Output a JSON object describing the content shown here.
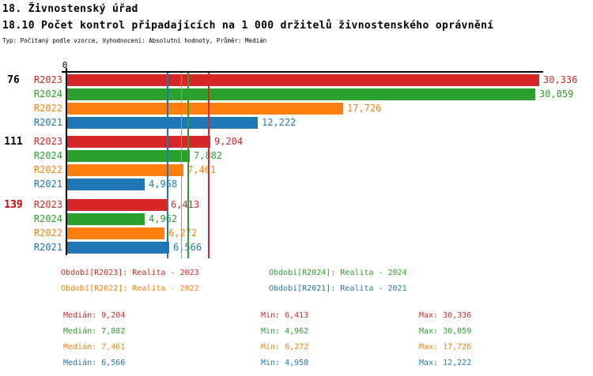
{
  "header": {
    "line1": "18. Živnostenský úřad",
    "line2": "18.10 Počet kontrol připadajících na 1 000 držitelů živnostenského oprávnění",
    "line3": "Typ: Počítaný podle vzorce, Vyhodnocení: Absolutní hodnoty, Průměr: Medián"
  },
  "chart_data": {
    "type": "bar",
    "orientation": "horizontal",
    "value_axis": {
      "zero_label": "0",
      "position": "top",
      "max_value": 30336,
      "grid": false
    },
    "series_order": [
      "R2023",
      "R2024",
      "R2022",
      "R2021"
    ],
    "series": {
      "R2023": {
        "name": "Realita - 2023",
        "color": "#d62728",
        "median": 9204,
        "min": 6413,
        "max": 30336
      },
      "R2024": {
        "name": "Realita - 2024",
        "color": "#2ca02c",
        "median": 7882,
        "min": 4962,
        "max": 30059
      },
      "R2022": {
        "name": "Realita - 2022",
        "color": "#ff7f0e",
        "median": 7461,
        "min": 6272,
        "max": 17726
      },
      "R2021": {
        "name": "Realita - 2021",
        "color": "#1f77b4",
        "median": 6566,
        "min": 4958,
        "max": 12222
      }
    },
    "groups": [
      {
        "label": "76",
        "label_color": "#000000",
        "values": {
          "R2023": 30336,
          "R2024": 30059,
          "R2022": 17726,
          "R2021": 12222
        }
      },
      {
        "label": "111",
        "label_color": "#000000",
        "values": {
          "R2023": 9204,
          "R2024": 7882,
          "R2022": 7461,
          "R2021": 4958
        }
      },
      {
        "label": "139",
        "label_color": "#cc0000",
        "values": {
          "R2023": 6413,
          "R2024": 4962,
          "R2022": 6272,
          "R2021": 6566
        }
      }
    ],
    "median_lines": [
      "R2023",
      "R2024",
      "R2022",
      "R2021"
    ]
  },
  "legend": {
    "items": [
      {
        "series": "R2023",
        "label": "Období[R2023]: Realita - 2023"
      },
      {
        "series": "R2024",
        "label": "Období[R2024]: Realita - 2024"
      },
      {
        "series": "R2022",
        "label": "Období[R2022]: Realita - 2022"
      },
      {
        "series": "R2021",
        "label": "Období[R2021]: Realita - 2021"
      }
    ]
  },
  "stats": {
    "rows": [
      {
        "series": "R2023",
        "median": "Medián: 9,204",
        "min": "Min: 6,413",
        "max": "Max: 30,336"
      },
      {
        "series": "R2024",
        "median": "Medián: 7,882",
        "min": "Min: 4,962",
        "max": "Max: 30,059"
      },
      {
        "series": "R2022",
        "median": "Medián: 7,461",
        "min": "Min: 6,272",
        "max": "Max: 17,726"
      },
      {
        "series": "R2021",
        "median": "Medián: 6,566",
        "min": "Min: 4,958",
        "max": "Max: 12,222"
      }
    ]
  }
}
